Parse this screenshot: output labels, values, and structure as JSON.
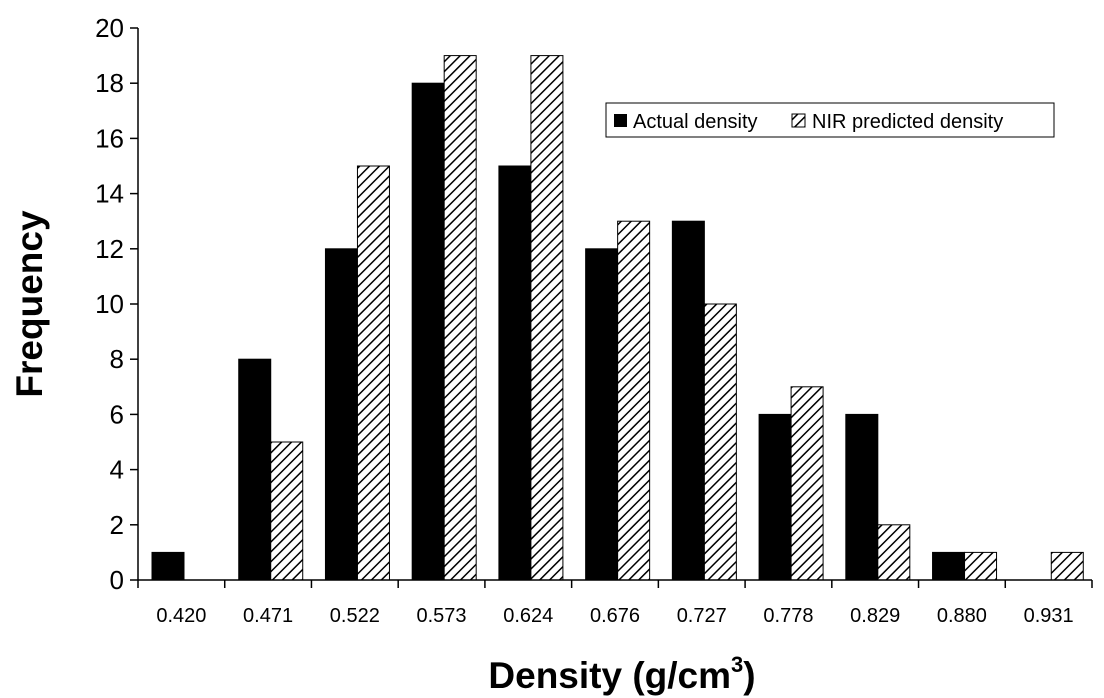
{
  "chart_data": {
    "type": "bar",
    "title": "",
    "xlabel": "Density (g/cm",
    "xlabel_superscript": "3",
    "xlabel_suffix": ")",
    "ylabel": "Frequency",
    "ylim": [
      0,
      20
    ],
    "yticks": [
      0,
      2,
      4,
      6,
      8,
      10,
      12,
      14,
      16,
      18,
      20
    ],
    "categories": [
      "0.420",
      "0.471",
      "0.522",
      "0.573",
      "0.624",
      "0.676",
      "0.727",
      "0.778",
      "0.829",
      "0.880",
      "0.931"
    ],
    "series": [
      {
        "name": "Actual density",
        "fill": "solid",
        "color": "#000000",
        "values": [
          1,
          8,
          12,
          18,
          15,
          12,
          13,
          6,
          6,
          1,
          0
        ]
      },
      {
        "name": "NIR predicted density",
        "fill": "hatched",
        "color": "#000000",
        "values": [
          0,
          5,
          15,
          19,
          19,
          13,
          10,
          7,
          2,
          1,
          1
        ]
      }
    ],
    "grid": false,
    "legend_position": "top-right"
  }
}
